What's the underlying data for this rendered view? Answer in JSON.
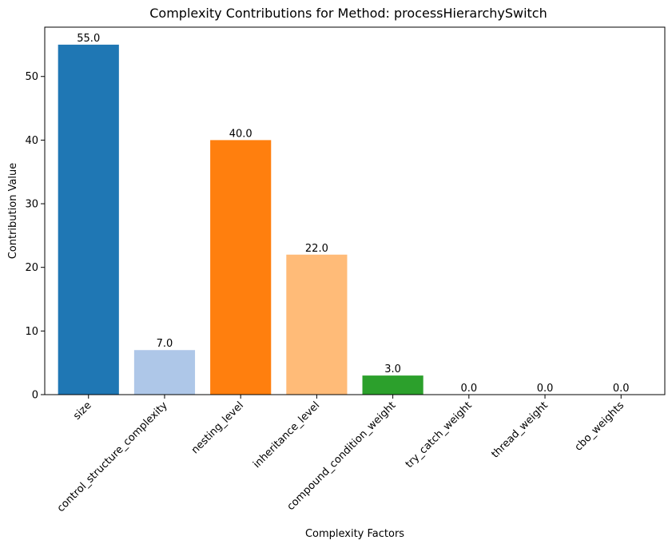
{
  "chart_data": {
    "type": "bar",
    "title": "Complexity Contributions for Method: processHierarchySwitch",
    "xlabel": "Complexity Factors",
    "ylabel": "Contribution Value",
    "categories": [
      "size",
      "control_structure_complexity",
      "nesting_level",
      "inheritance_level",
      "compound_condition_weight",
      "try_catch_weight",
      "thread_weight",
      "cbo_weights"
    ],
    "values": [
      55.0,
      7.0,
      40.0,
      22.0,
      3.0,
      0.0,
      0.0,
      0.0
    ],
    "value_labels": [
      "55.0",
      "7.0",
      "40.0",
      "22.0",
      "3.0",
      "0.0",
      "0.0",
      "0.0"
    ],
    "colors": [
      "#1f77b4",
      "#aec7e8",
      "#ff7f0e",
      "#ffbb78",
      "#2ca02c",
      "#98df8a",
      "#d62728",
      "#ff9896"
    ],
    "yticks": [
      0,
      10,
      20,
      30,
      40,
      50
    ],
    "ylim": [
      0,
      57.75
    ],
    "grid": false,
    "legend": "none"
  }
}
